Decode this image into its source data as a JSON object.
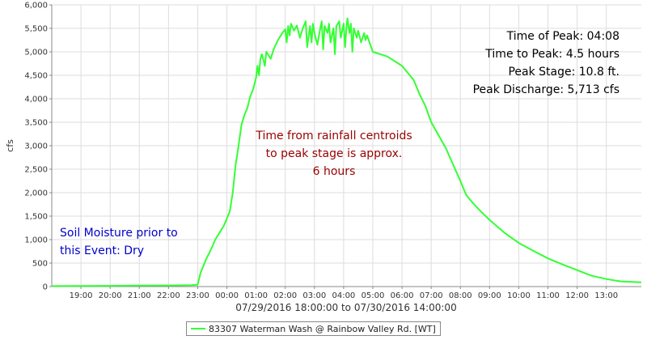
{
  "chart_data": {
    "type": "line",
    "ylabel": "cfs",
    "xlabel": "07/29/2016 18:00:00 to 07/30/2016 14:00:00",
    "x_range": [
      "07/29/2016 18:00:00",
      "07/30/2016 14:00:00"
    ],
    "xlim_hours": [
      18.0,
      38.2
    ],
    "ylim": [
      0,
      6000
    ],
    "y_ticks": [
      0,
      500,
      1000,
      1500,
      2000,
      2500,
      3000,
      3500,
      4000,
      4500,
      5000,
      5500,
      6000
    ],
    "y_tick_labels": [
      "0",
      "500",
      "1,000",
      "1,500",
      "2,000",
      "2,500",
      "3,000",
      "3,500",
      "4,000",
      "4,500",
      "5,000",
      "5,500",
      "6,000"
    ],
    "x_ticks": [
      19,
      20,
      21,
      22,
      23,
      24,
      25,
      26,
      27,
      28,
      29,
      30,
      31,
      32,
      33,
      34,
      35,
      36,
      37
    ],
    "x_tick_labels": [
      "19:00",
      "20:00",
      "21:00",
      "22:00",
      "23:00",
      "00:00",
      "01:00",
      "02:00",
      "03:00",
      "04:00",
      "05:00",
      "06:00",
      "07:00",
      "08:00",
      "09:00",
      "10:00",
      "11:00",
      "12:00",
      "13:00"
    ],
    "grid": true,
    "series": [
      {
        "name": "83307 Waterman Wash @ Rainbow Valley Rd. [WT]",
        "color": "#33ff33",
        "points": [
          [
            18.0,
            10
          ],
          [
            19.0,
            12
          ],
          [
            20.0,
            15
          ],
          [
            21.0,
            20
          ],
          [
            22.0,
            25
          ],
          [
            22.8,
            30
          ],
          [
            23.0,
            40
          ],
          [
            23.1,
            300
          ],
          [
            23.2,
            450
          ],
          [
            23.3,
            600
          ],
          [
            23.4,
            720
          ],
          [
            23.5,
            850
          ],
          [
            23.6,
            1000
          ],
          [
            23.75,
            1150
          ],
          [
            23.9,
            1300
          ],
          [
            24.0,
            1450
          ],
          [
            24.1,
            1600
          ],
          [
            24.2,
            2000
          ],
          [
            24.3,
            2600
          ],
          [
            24.4,
            3000
          ],
          [
            24.5,
            3450
          ],
          [
            24.6,
            3650
          ],
          [
            24.7,
            3800
          ],
          [
            24.8,
            4050
          ],
          [
            24.9,
            4200
          ],
          [
            25.0,
            4450
          ],
          [
            25.05,
            4700
          ],
          [
            25.1,
            4500
          ],
          [
            25.15,
            4850
          ],
          [
            25.2,
            4950
          ],
          [
            25.3,
            4700
          ],
          [
            25.35,
            5000
          ],
          [
            25.5,
            4850
          ],
          [
            25.6,
            5050
          ],
          [
            25.75,
            5250
          ],
          [
            25.9,
            5400
          ],
          [
            26.0,
            5480
          ],
          [
            26.05,
            5200
          ],
          [
            26.1,
            5550
          ],
          [
            26.15,
            5350
          ],
          [
            26.2,
            5600
          ],
          [
            26.3,
            5450
          ],
          [
            26.4,
            5560
          ],
          [
            26.5,
            5300
          ],
          [
            26.6,
            5500
          ],
          [
            26.7,
            5650
          ],
          [
            26.75,
            5100
          ],
          [
            26.85,
            5550
          ],
          [
            26.9,
            5200
          ],
          [
            26.95,
            5600
          ],
          [
            27.0,
            5400
          ],
          [
            27.1,
            5150
          ],
          [
            27.2,
            5500
          ],
          [
            27.25,
            5650
          ],
          [
            27.3,
            5050
          ],
          [
            27.35,
            5550
          ],
          [
            27.45,
            5400
          ],
          [
            27.5,
            5600
          ],
          [
            27.55,
            5200
          ],
          [
            27.65,
            5500
          ],
          [
            27.7,
            4950
          ],
          [
            27.75,
            5550
          ],
          [
            27.85,
            5650
          ],
          [
            27.9,
            5300
          ],
          [
            28.0,
            5600
          ],
          [
            28.05,
            5100
          ],
          [
            28.1,
            5550
          ],
          [
            28.13,
            5713
          ],
          [
            28.2,
            5400
          ],
          [
            28.25,
            5600
          ],
          [
            28.3,
            5000
          ],
          [
            28.35,
            5500
          ],
          [
            28.45,
            5300
          ],
          [
            28.5,
            5450
          ],
          [
            28.6,
            5200
          ],
          [
            28.7,
            5400
          ],
          [
            28.75,
            5250
          ],
          [
            28.8,
            5350
          ],
          [
            29.0,
            5000
          ],
          [
            29.5,
            4900
          ],
          [
            30.0,
            4700
          ],
          [
            30.4,
            4400
          ],
          [
            30.6,
            4100
          ],
          [
            30.8,
            3850
          ],
          [
            31.0,
            3500
          ],
          [
            31.5,
            2950
          ],
          [
            32.0,
            2250
          ],
          [
            32.2,
            1950
          ],
          [
            32.4,
            1800
          ],
          [
            32.7,
            1600
          ],
          [
            33.0,
            1420
          ],
          [
            33.5,
            1150
          ],
          [
            34.0,
            930
          ],
          [
            34.5,
            760
          ],
          [
            35.0,
            600
          ],
          [
            35.5,
            470
          ],
          [
            36.0,
            350
          ],
          [
            36.5,
            230
          ],
          [
            37.0,
            160
          ],
          [
            37.5,
            110
          ],
          [
            38.2,
            90
          ]
        ]
      }
    ],
    "annotations": {
      "peak_lines": [
        "Time of Peak: 04:08",
        "Time to Peak: 4.5 hours",
        "Peak Stage: 10.8 ft.",
        "Peak Discharge: 5,713 cfs"
      ],
      "centroid_lines": [
        "Time from rainfall centroids",
        "to peak stage is approx.",
        "6 hours"
      ],
      "soil_lines": [
        "Soil Moisture prior to",
        "this Event: Dry"
      ],
      "colors": {
        "peak": "#000000",
        "centroid": "#990000",
        "soil": "#0000cc"
      }
    },
    "legend": "bottom-center"
  }
}
